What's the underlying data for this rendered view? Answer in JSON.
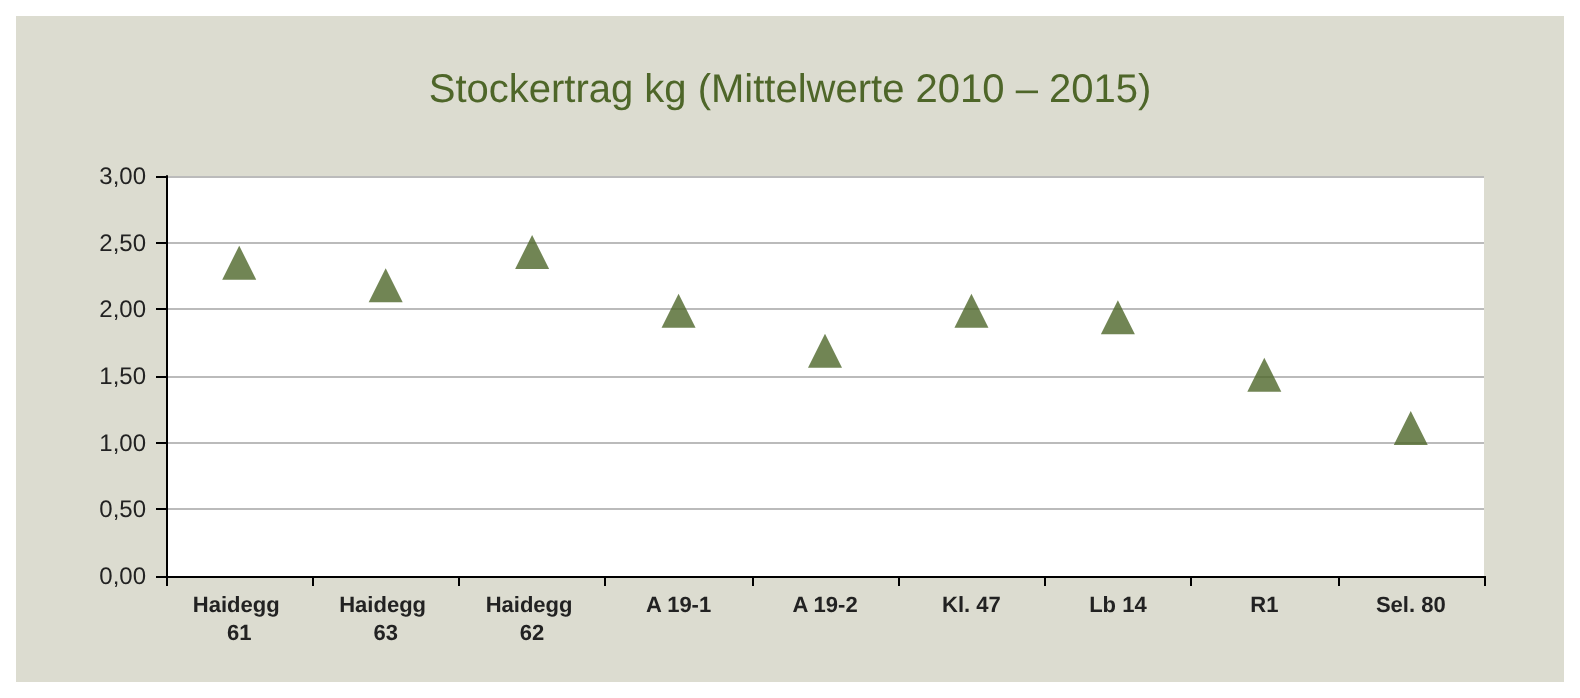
{
  "chart_data": {
    "type": "scatter",
    "title": "Stockertrag kg (Mittelwerte 2010 – 2015)",
    "categories": [
      "Haidegg 61",
      "Haidegg 63",
      "Haidegg 62",
      "A 19-1",
      "A 19-2",
      "Kl. 47",
      "Lb 14",
      "R1",
      "Sel. 80"
    ],
    "series": [
      {
        "color": "#4e6629",
        "values": [
          2.35,
          2.18,
          2.43,
          1.99,
          1.69,
          1.99,
          1.94,
          1.51,
          1.11
        ]
      }
    ],
    "ylim": [
      0,
      3
    ],
    "yticks": [
      {
        "value": 0,
        "label": "0,00"
      },
      {
        "value": 0.5,
        "label": "0,50"
      },
      {
        "value": 1,
        "label": "1,00"
      },
      {
        "value": 1.5,
        "label": "1,50"
      },
      {
        "value": 2,
        "label": "2,00"
      },
      {
        "value": 2.5,
        "label": "2,50"
      },
      {
        "value": 3,
        "label": "3,00"
      }
    ],
    "grid": "y",
    "marker": "triangle"
  }
}
